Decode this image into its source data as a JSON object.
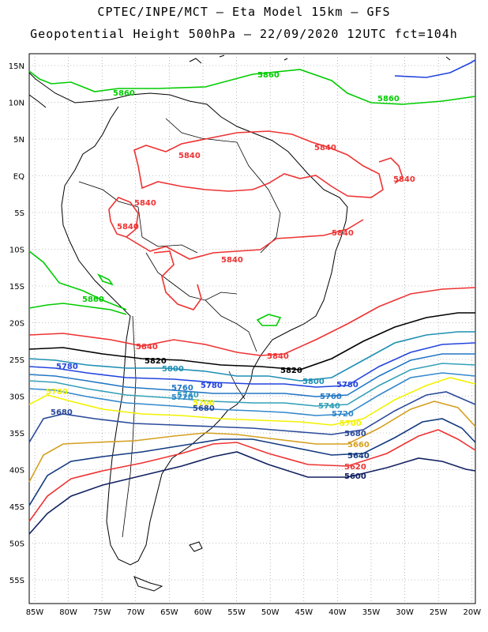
{
  "header": {
    "line1": "CPTEC/INPE/MCT —  Eta Model 15km — GFS",
    "line2": "Geopotential Height 500hPa — 22/09/2020 12UTC fct=104h"
  },
  "map": {
    "lon_labels": [
      "85W",
      "80W",
      "75W",
      "70W",
      "65W",
      "60W",
      "55W",
      "50W",
      "45W",
      "40W",
      "35W",
      "30W",
      "25W",
      "20W"
    ],
    "lat_labels": [
      "15N",
      "10N",
      "5N",
      "EQ",
      "5S",
      "10S",
      "15S",
      "20S",
      "25S",
      "30S",
      "35S",
      "40S",
      "45S",
      "50S",
      "55S"
    ]
  },
  "contours": {
    "colors": {
      "5860": "#00cc00",
      "5840": "#ee3333",
      "5820": "#000000",
      "5800": "#1f8fb3",
      "5780": "#2244dd",
      "5760": "#2277c4",
      "5740": "#33a0b8",
      "5720": "#3388cc",
      "5700": "#f2f200",
      "5680": "#2a4a9a",
      "5660": "#d4a020",
      "5640": "#123a80",
      "5620": "#ee3333",
      "5600": "#102060",
      "5940": "#2244dd"
    },
    "labels": [
      {
        "id": "l5860a",
        "text": "5860",
        "level": "5860"
      },
      {
        "id": "l5860b",
        "text": "5860",
        "level": "5860"
      },
      {
        "id": "l5860c",
        "text": "5860",
        "level": "5860"
      },
      {
        "id": "l5860d",
        "text": "5860",
        "level": "5860"
      },
      {
        "id": "l5840a",
        "text": "5840",
        "level": "5840"
      },
      {
        "id": "l5840b",
        "text": "5840",
        "level": "5840"
      },
      {
        "id": "l5840c",
        "text": "5840",
        "level": "5840"
      },
      {
        "id": "l5840d",
        "text": "5840",
        "level": "5840"
      },
      {
        "id": "l5840e",
        "text": "5840",
        "level": "5840"
      },
      {
        "id": "l5840f",
        "text": "5840",
        "level": "5840"
      },
      {
        "id": "l5840g",
        "text": "5840",
        "level": "5840"
      },
      {
        "id": "l5840h",
        "text": "5840",
        "level": "5840"
      },
      {
        "id": "l5840i",
        "text": "5840",
        "level": "5840"
      },
      {
        "id": "l5820a",
        "text": "5820",
        "level": "5820"
      },
      {
        "id": "l5820b",
        "text": "5820",
        "level": "5820"
      },
      {
        "id": "l5800a",
        "text": "5800",
        "level": "5800"
      },
      {
        "id": "l5800b",
        "text": "5800",
        "level": "5800"
      },
      {
        "id": "l5780a",
        "text": "5780",
        "level": "5780"
      },
      {
        "id": "l5780b",
        "text": "5780",
        "level": "5780"
      },
      {
        "id": "l5780c",
        "text": "5780",
        "level": "5780"
      },
      {
        "id": "l5760a",
        "text": "5760",
        "level": "5760"
      },
      {
        "id": "l5760b",
        "text": "5760",
        "level": "5760"
      },
      {
        "id": "l5740a",
        "text": "5740",
        "level": "5740"
      },
      {
        "id": "l5740b",
        "text": "5740",
        "level": "5740"
      },
      {
        "id": "l5720a",
        "text": "5720",
        "level": "5720"
      },
      {
        "id": "l5720b",
        "text": "5720",
        "level": "5720"
      },
      {
        "id": "l5700a",
        "text": "5700",
        "level": "5700"
      },
      {
        "id": "l5700b",
        "text": "5700",
        "level": "5700"
      },
      {
        "id": "l5700c",
        "text": "5700",
        "level": "5700"
      },
      {
        "id": "l5680a",
        "text": "5680",
        "level": "5680"
      },
      {
        "id": "l5680b",
        "text": "5680",
        "level": "5680"
      },
      {
        "id": "l5680c",
        "text": "5680",
        "level": "5680"
      },
      {
        "id": "l5660a",
        "text": "5660",
        "level": "5660"
      },
      {
        "id": "l5640a",
        "text": "5640",
        "level": "5640"
      },
      {
        "id": "l5620a",
        "text": "5620",
        "level": "5620"
      },
      {
        "id": "l5600a",
        "text": "5600",
        "level": "5600"
      }
    ]
  }
}
